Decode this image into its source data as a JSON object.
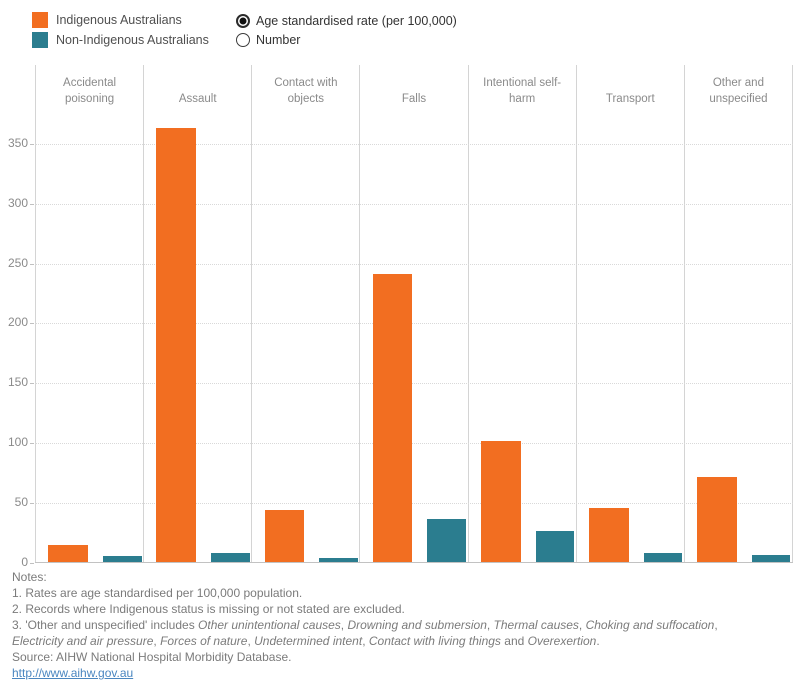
{
  "legend": {
    "items": [
      {
        "label": "Indigenous Australians",
        "color": "#f26e21"
      },
      {
        "label": "Non-Indigenous Australians",
        "color": "#2b7d8f"
      }
    ]
  },
  "controls": {
    "options": [
      {
        "label": "Age standardised rate (per 100,000)",
        "selected": true
      },
      {
        "label": "Number",
        "selected": false
      }
    ]
  },
  "chart_data": {
    "type": "bar",
    "categories": [
      "Accidental poisoning",
      "Assault",
      "Contact with objects",
      "Falls",
      "Intentional self-harm",
      "Transport",
      "Other and unspecified"
    ],
    "series": [
      {
        "name": "Indigenous Australians",
        "color": "#f26e21",
        "values": [
          15,
          363,
          44,
          241,
          102,
          46,
          72
        ]
      },
      {
        "name": "Non-Indigenous Australians",
        "color": "#2b7d8f",
        "values": [
          6,
          8,
          4,
          37,
          27,
          8,
          7
        ]
      }
    ],
    "ylabel": "",
    "xlabel": "",
    "ylim": [
      0,
      378
    ],
    "yticks": [
      0,
      50,
      100,
      150,
      200,
      250,
      300,
      350
    ],
    "grid": "horizontal-dotted",
    "legend_position": "top-left",
    "panel_layout": "one panel per category with shared y-axis"
  },
  "notes": {
    "title": "Notes:",
    "note1": "1. Rates are age standardised per 100,000 population.",
    "note2": "2. Records where Indigenous status is missing or not stated are excluded.",
    "note3_lines": [
      [
        {
          "t": "3. 'Other and unspecified' includes ",
          "i": false
        },
        {
          "t": "Other unintentional causes",
          "i": true
        },
        {
          "t": ", ",
          "i": false
        },
        {
          "t": "Drowning and submersion",
          "i": true
        },
        {
          "t": ", ",
          "i": false
        },
        {
          "t": "Thermal causes",
          "i": true
        },
        {
          "t": ", ",
          "i": false
        },
        {
          "t": "Choking and suffocation",
          "i": true
        },
        {
          "t": ",",
          "i": false
        }
      ],
      [
        {
          "t": "Electricity and air pressure",
          "i": true
        },
        {
          "t": ", ",
          "i": false
        },
        {
          "t": "Forces of nature",
          "i": true
        },
        {
          "t": ", ",
          "i": false
        },
        {
          "t": "Undetermined intent",
          "i": true
        },
        {
          "t": ", ",
          "i": false
        },
        {
          "t": "Contact with living things",
          "i": true
        },
        {
          "t": " and ",
          "i": false
        },
        {
          "t": "Overexertion",
          "i": true
        },
        {
          "t": ".",
          "i": false
        }
      ]
    ],
    "source": "Source: AIHW National Hospital Morbidity Database.",
    "link": "http://www.aihw.gov.au",
    "link_color": "#4a86c0"
  }
}
